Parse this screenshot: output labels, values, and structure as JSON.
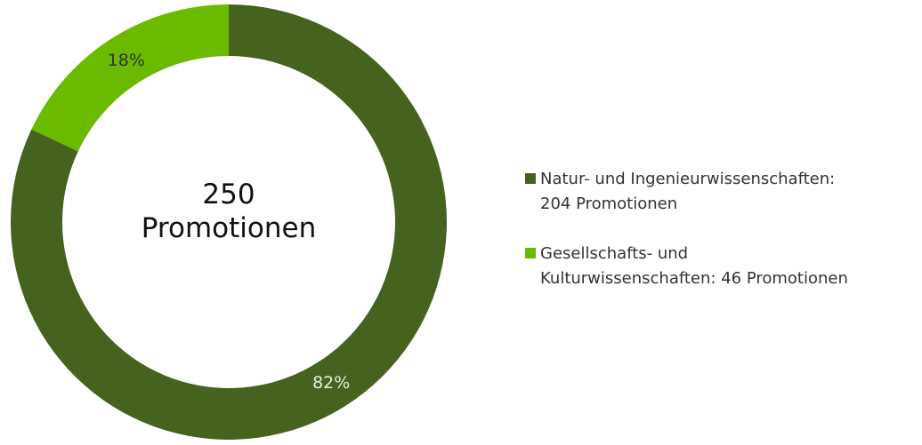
{
  "chart_data": {
    "type": "pie",
    "title": "250\nPromotionen",
    "series": [
      {
        "name": "Natur- und Ingenieurwissenschaften:\n204 Promotionen",
        "color": "#46621f",
        "label_color": "#e8eee0",
        "values": [
          82
        ],
        "value_labels": [
          "82%"
        ]
      },
      {
        "name": "Gesellschafts- und\nKulturwissenschaften: 46 Promotionen",
        "color": "#6abb00",
        "label_color": "#333333",
        "values": [
          18
        ],
        "value_labels": [
          "18%"
        ]
      }
    ],
    "legend": "right"
  }
}
